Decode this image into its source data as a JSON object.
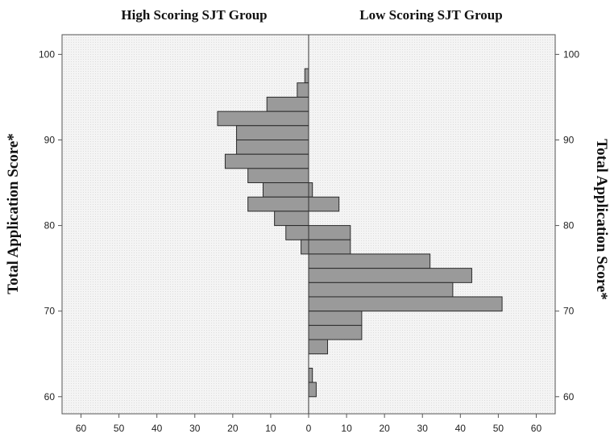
{
  "chart_data": {
    "type": "bar",
    "orientation": "back-to-back horizontal histogram",
    "left_title": "High Scoring SJT Group",
    "right_title": "Low Scoring SJT Group",
    "ylabel_left": "Total Application Score*",
    "ylabel_right": "Total Application Score*",
    "xlim": [
      -65,
      65
    ],
    "ylim": [
      58,
      102.3
    ],
    "x_ticks": [
      -60,
      -50,
      -40,
      -30,
      -20,
      -10,
      0,
      10,
      20,
      30,
      40,
      50,
      60
    ],
    "x_tick_labels": [
      "60",
      "50",
      "40",
      "30",
      "20",
      "10",
      "0",
      "10",
      "20",
      "30",
      "40",
      "50",
      "60"
    ],
    "y_ticks": [
      60,
      70,
      80,
      90,
      100
    ],
    "y_tick_labels": [
      "60",
      "70",
      "80",
      "90",
      "100"
    ],
    "bin_width": 1.67,
    "series": [
      {
        "side": "left",
        "bins": [
          {
            "low": 96.67,
            "high": 98.33,
            "count": 1
          },
          {
            "low": 95.0,
            "high": 96.67,
            "count": 3
          },
          {
            "low": 93.33,
            "high": 95.0,
            "count": 11
          },
          {
            "low": 91.67,
            "high": 93.33,
            "count": 24
          },
          {
            "low": 90.0,
            "high": 91.67,
            "count": 19
          },
          {
            "low": 88.33,
            "high": 90.0,
            "count": 19
          },
          {
            "low": 86.67,
            "high": 88.33,
            "count": 22
          },
          {
            "low": 85.0,
            "high": 86.67,
            "count": 16
          },
          {
            "low": 83.33,
            "high": 85.0,
            "count": 12
          },
          {
            "low": 81.67,
            "high": 83.33,
            "count": 16
          },
          {
            "low": 80.0,
            "high": 81.67,
            "count": 9
          },
          {
            "low": 78.33,
            "high": 80.0,
            "count": 6
          },
          {
            "low": 76.67,
            "high": 78.33,
            "count": 2
          }
        ]
      },
      {
        "side": "right",
        "bins": [
          {
            "low": 83.33,
            "high": 85.0,
            "count": 1
          },
          {
            "low": 81.67,
            "high": 83.33,
            "count": 8
          },
          {
            "low": 78.33,
            "high": 80.0,
            "count": 11
          },
          {
            "low": 76.67,
            "high": 78.33,
            "count": 11
          },
          {
            "low": 75.0,
            "high": 76.67,
            "count": 32
          },
          {
            "low": 73.33,
            "high": 75.0,
            "count": 43
          },
          {
            "low": 71.67,
            "high": 73.33,
            "count": 38
          },
          {
            "low": 70.0,
            "high": 71.67,
            "count": 51
          },
          {
            "low": 68.33,
            "high": 70.0,
            "count": 14
          },
          {
            "low": 66.67,
            "high": 68.33,
            "count": 14
          },
          {
            "low": 65.0,
            "high": 66.67,
            "count": 5
          },
          {
            "low": 61.67,
            "high": 63.33,
            "count": 1
          },
          {
            "low": 60.0,
            "high": 61.67,
            "count": 2
          }
        ]
      }
    ],
    "grid": false,
    "legend": "none",
    "colors": {
      "bar_fill": "#9a9a9a",
      "bar_stroke": "#2a2a2a",
      "plot_background": "#f3f3f3",
      "frame": "#555555"
    }
  }
}
